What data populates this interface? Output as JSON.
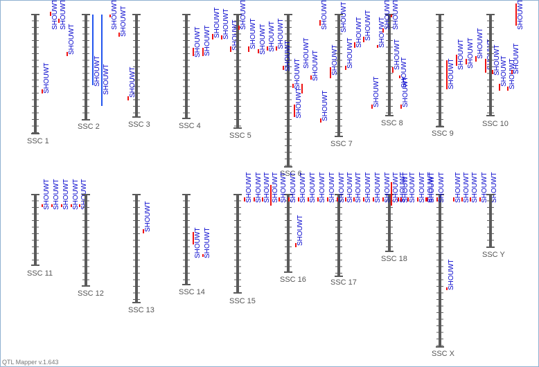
{
  "footer": "QTL Mapper v.1.643",
  "colors": {
    "chromosome": "#5a5a5a",
    "label_text": "#555555",
    "qtl_text": "#0000cc",
    "qtl_interval": "#ee1111",
    "qtl_interval_alt": "#2255ee"
  },
  "chromosomes": [
    {
      "name": "SSC 1",
      "qtl_label": "SHOUWT",
      "qtl_count": 3
    },
    {
      "name": "SSC 2",
      "qtl_label": "SHOUWT",
      "qtl_count": 4
    },
    {
      "name": "SSC 3",
      "qtl_label": "SHOUWT",
      "qtl_count": 1
    },
    {
      "name": "SSC 4",
      "qtl_label": "SHOUWT",
      "qtl_count": 5
    },
    {
      "name": "SSC 5",
      "qtl_label": "SHOUWT",
      "qtl_count": 7
    },
    {
      "name": "SSC 6",
      "qtl_label": "SHOUWT",
      "qtl_count": 7
    },
    {
      "name": "SSC 7",
      "qtl_label": "SHOUWT",
      "qtl_count": 9
    },
    {
      "name": "SSC 8",
      "qtl_label": "SHOUWT",
      "qtl_count": 7
    },
    {
      "name": "SSC 9",
      "qtl_label": "SHOUWT",
      "qtl_count": 5
    },
    {
      "name": "SSC 10",
      "qtl_label": "SHOUWT",
      "qtl_count": 5
    },
    {
      "name": "SSC 11",
      "qtl_label": "SHOUWT",
      "qtl_count": 5
    },
    {
      "name": "SSC 12",
      "qtl_label": "SHOUWT",
      "qtl_count": 0
    },
    {
      "name": "SSC 13",
      "qtl_label": "SHOUWT",
      "qtl_count": 1
    },
    {
      "name": "SSC 14",
      "qtl_label": "SHOUWT",
      "qtl_count": 2
    },
    {
      "name": "SSC 15",
      "qtl_label": "SHOUWT",
      "qtl_count": 4
    },
    {
      "name": "SSC 16",
      "qtl_label": "SHOUWT",
      "qtl_count": 6
    },
    {
      "name": "SSC 17",
      "qtl_label": "SHOUWT",
      "qtl_count": 5
    },
    {
      "name": "SSC 18",
      "qtl_label": "SHOUWT",
      "qtl_count": 6
    },
    {
      "name": "SSC X",
      "qtl_label": "SHOUWT",
      "qtl_count": 10
    },
    {
      "name": "SSC Y",
      "qtl_label": "SHOUWT",
      "qtl_count": 0
    }
  ]
}
